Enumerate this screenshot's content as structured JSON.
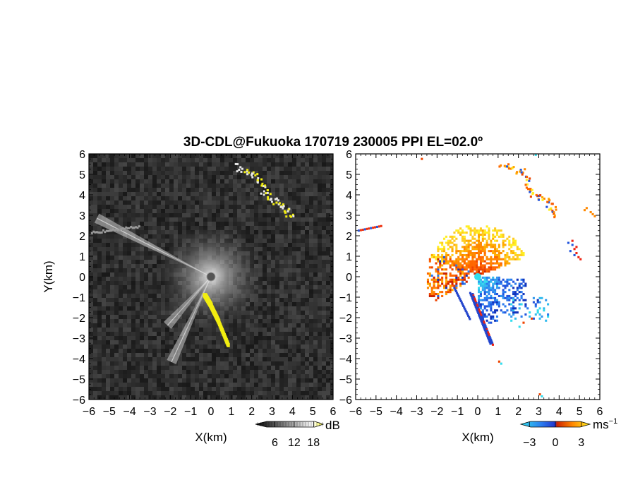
{
  "title": "3D-CDL@Fukuoka 170719 230005 PPI EL=02.0º",
  "chart_data": [
    {
      "type": "heatmap",
      "name": "snr-panel",
      "xlabel": "X(km)",
      "ylabel": "Y(km)",
      "xlim": [
        -6,
        6
      ],
      "ylim": [
        -6,
        6
      ],
      "xticks": [
        "−6",
        "−5",
        "−4",
        "−3",
        "−2",
        "−1",
        "0",
        "1",
        "2",
        "3",
        "4",
        "5",
        "6"
      ],
      "yticks": [
        "−6",
        "−5",
        "−4",
        "−3",
        "−2",
        "−1",
        "0",
        "1",
        "2",
        "3",
        "4",
        "5",
        "6"
      ],
      "colorbar": {
        "unit": "dB",
        "ticks": [
          "6",
          "12",
          "18"
        ],
        "range": [
          0,
          21
        ],
        "colors": [
          "#000000",
          "#ffffff",
          "#ffff33"
        ]
      },
      "features": {
        "bright_spoke_az_deg": [
          297,
          205,
          222
        ],
        "yellow_streak": [
          [
            -0.3,
            -0.9
          ],
          [
            0.0,
            -1.4
          ],
          [
            0.4,
            -2.2
          ],
          [
            0.9,
            -3.4
          ]
        ],
        "north_echo": [
          [
            1.1,
            5.4
          ],
          [
            2.2,
            5.0
          ],
          [
            2.6,
            4.1
          ],
          [
            3.4,
            3.5
          ],
          [
            3.9,
            3.0
          ]
        ]
      }
    },
    {
      "type": "heatmap",
      "name": "velocity-panel",
      "xlabel": "X(km)",
      "ylabel": "",
      "xlim": [
        -6,
        6
      ],
      "ylim": [
        -6,
        6
      ],
      "xticks": [
        "−6",
        "−5",
        "−4",
        "−3",
        "−2",
        "−1",
        "0",
        "1",
        "2",
        "3",
        "4",
        "5",
        "6"
      ],
      "yticks": [
        "−6",
        "−5",
        "−4",
        "−3",
        "−2",
        "−1",
        "0",
        "1",
        "2",
        "3",
        "4",
        "5",
        "6"
      ],
      "colorbar": {
        "unit": "ms",
        "unit_sup": "−1",
        "ticks": [
          "−3",
          "0",
          "3"
        ],
        "range": [
          -4,
          4
        ],
        "colors": [
          "#33ddee",
          "#2255dd",
          "#cc2200",
          "#ff8800",
          "#ffee22"
        ]
      },
      "features": {
        "positive_lobe_center": [
          0.9,
          0.8
        ],
        "negative_lobe_center": [
          0.9,
          -1.3
        ],
        "north_echo": [
          [
            1.1,
            5.4
          ],
          [
            2.2,
            5.0
          ],
          [
            2.6,
            4.1
          ],
          [
            3.4,
            3.5
          ],
          [
            3.9,
            3.0
          ]
        ]
      }
    }
  ]
}
